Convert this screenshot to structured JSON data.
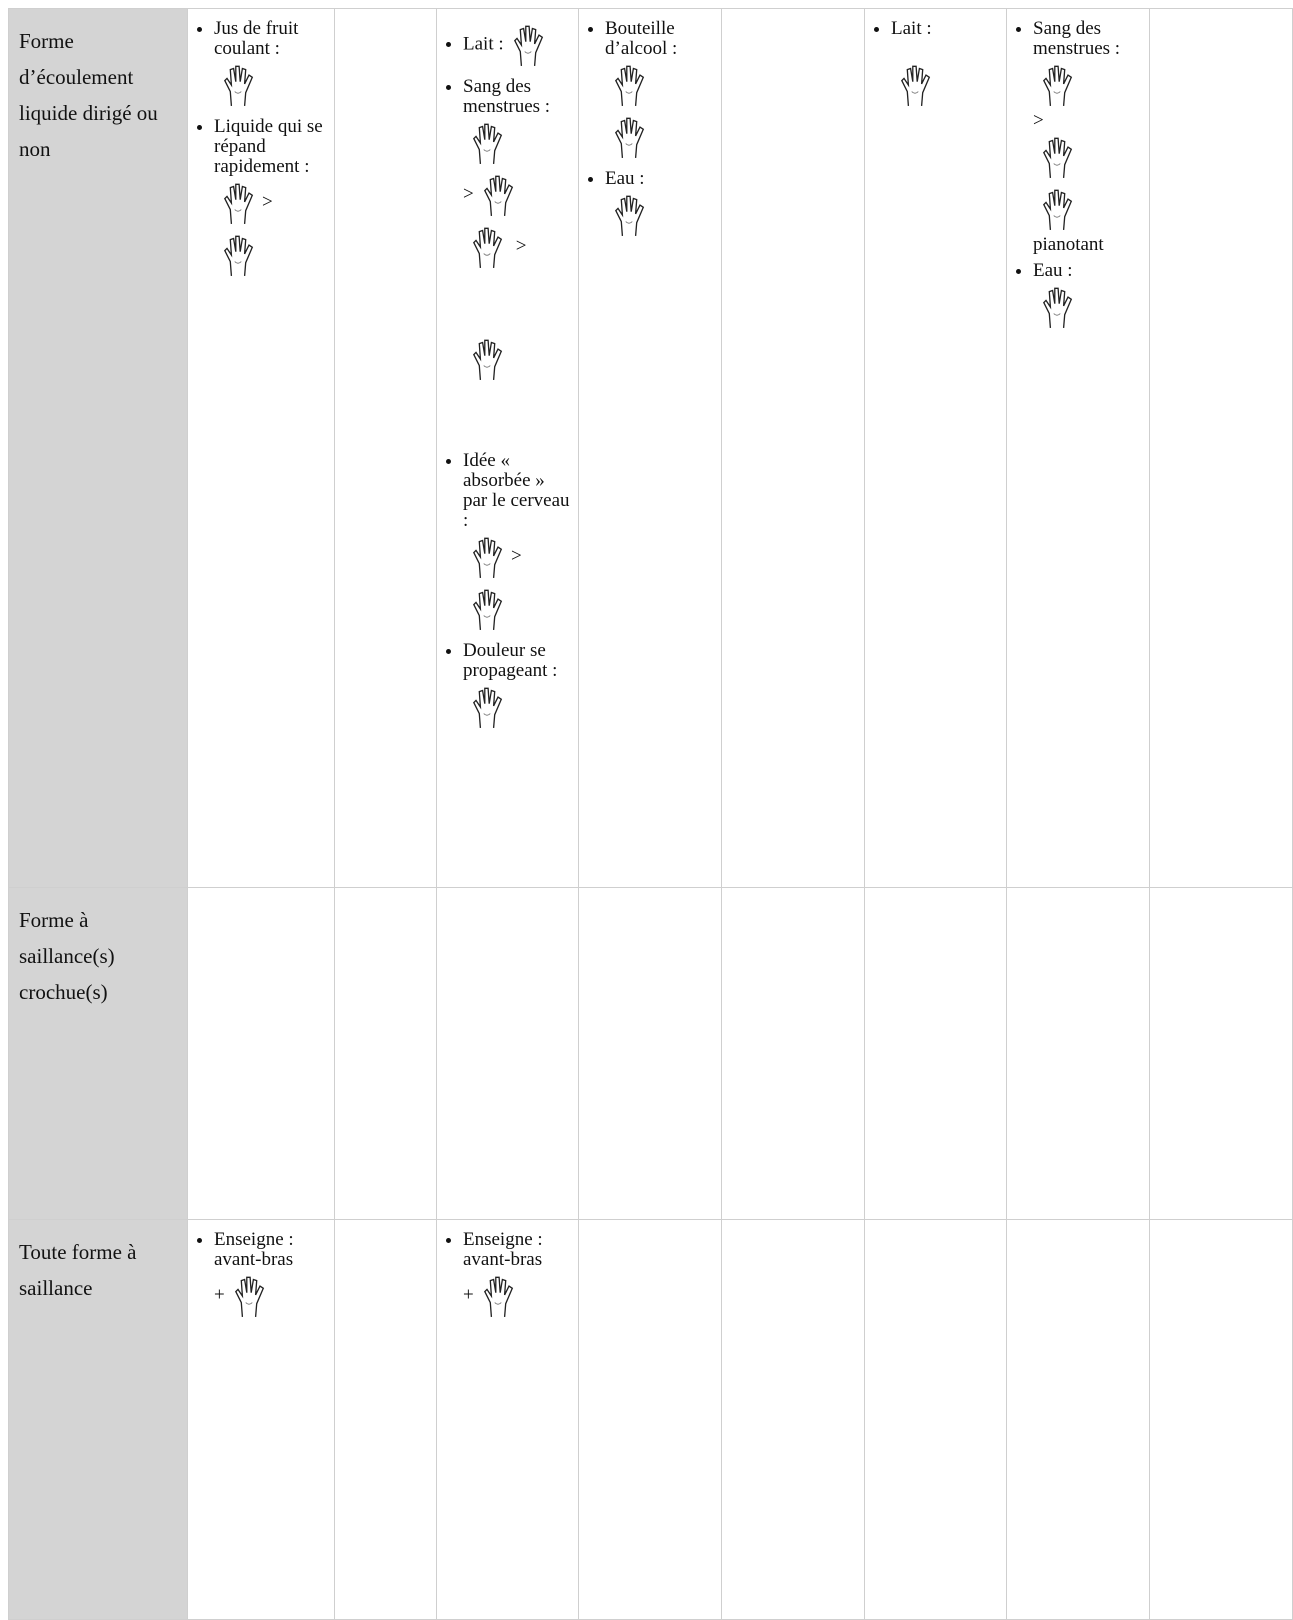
{
  "rows": [
    {
      "label": "Forme d’écoulement liquide dirigé ou non",
      "cells": [
        [
          [
            "Jus de fruit coulant :"
          ],
          [
            "Liquide qui se répand rapidement :",
            ">"
          ]
        ],
        null,
        [
          [
            "Lait :"
          ],
          [
            "Sang des menstrues :",
            ">",
            ">"
          ],
          [
            "Idée « absorbée » par le cerveau :",
            ">"
          ],
          [
            "Douleur se propageant :"
          ]
        ],
        [
          [
            "Bouteille d’alcool :"
          ],
          [
            "Eau :"
          ]
        ],
        null,
        [
          [
            "Lait :"
          ]
        ],
        [
          [
            "Sang des menstrues :",
            ">",
            "pianotant"
          ],
          [
            "Eau :"
          ]
        ],
        null
      ]
    },
    {
      "label": "Forme à saillance(s) crochue(s)",
      "cells": [
        null,
        null,
        null,
        null,
        null,
        null,
        null,
        null
      ]
    },
    {
      "label": "Toute forme à saillance",
      "cells": [
        [
          [
            "Enseigne : avant-bras",
            "+"
          ]
        ],
        null,
        [
          [
            "Enseigne : avant-bras",
            "+"
          ]
        ],
        null,
        null,
        null,
        null,
        null
      ]
    }
  ]
}
